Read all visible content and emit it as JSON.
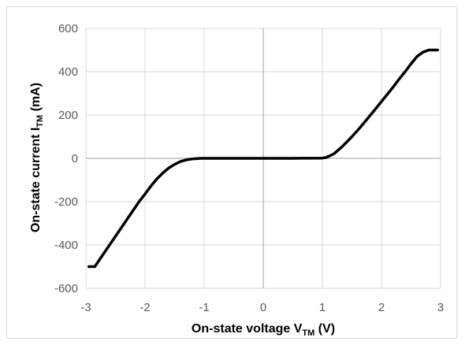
{
  "chart_data": {
    "type": "line",
    "title": "",
    "xlabel": {
      "main": "On-state voltage V",
      "sub": "TM",
      "suffix": " (V)"
    },
    "ylabel": {
      "main": "On-state current I",
      "sub": "TM",
      "suffix": " (mA)"
    },
    "xlim": [
      -3,
      3
    ],
    "ylim": [
      -600,
      600
    ],
    "x_ticks": [
      -3,
      -2,
      -1,
      0,
      1,
      2,
      3
    ],
    "y_ticks": [
      -600,
      -400,
      -200,
      0,
      200,
      400,
      600
    ],
    "grid": true,
    "legend": "none",
    "colors": {
      "line": "#000000",
      "grid": "#d9d9d9",
      "axis": "#bfbfbf",
      "tick_text": "#595959"
    },
    "series": [
      {
        "x": [
          -2.95,
          -2.85,
          -2.8,
          -2.7,
          -2.6,
          -2.5,
          -2.4,
          -2.3,
          -2.2,
          -2.1,
          -2.0,
          -1.9,
          -1.8,
          -1.7,
          -1.6,
          -1.5,
          -1.4,
          -1.3,
          -1.2,
          -1.1,
          -1.05,
          -1.0,
          -0.5,
          0.0,
          0.5,
          1.0,
          1.05,
          1.1,
          1.2,
          1.3,
          1.4,
          1.5,
          1.6,
          1.7,
          1.8,
          1.9,
          2.0,
          2.1,
          2.2,
          2.3,
          2.4,
          2.5,
          2.6,
          2.7,
          2.8,
          2.85,
          2.95
        ],
        "y": [
          -500,
          -500,
          -480,
          -440,
          -400,
          -360,
          -320,
          -280,
          -240,
          -200,
          -165,
          -128,
          -95,
          -68,
          -45,
          -28,
          -15,
          -7,
          -3,
          -1,
          0,
          0,
          0,
          0,
          0,
          1,
          3,
          8,
          22,
          45,
          72,
          100,
          130,
          162,
          195,
          228,
          262,
          296,
          330,
          366,
          400,
          436,
          470,
          490,
          500,
          500,
          500
        ]
      }
    ]
  }
}
